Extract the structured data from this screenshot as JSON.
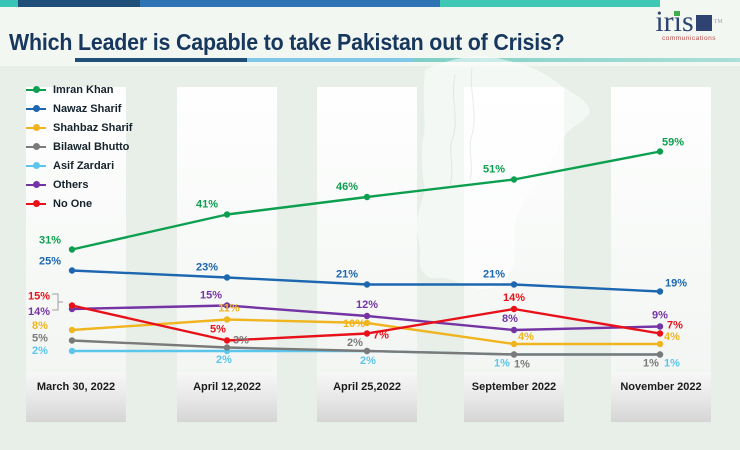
{
  "header": {
    "title": "Which Leader is Capable to take Pakistan out of Crisis?",
    "logo": {
      "text": "iris",
      "tm": "TM",
      "subtitle": "communications"
    }
  },
  "chart_data": {
    "type": "line",
    "categories": [
      "March 30, 2022",
      "April 12,2022",
      "April 25,2022",
      "September 2022",
      "November 2022"
    ],
    "series": [
      {
        "name": "Imran Khan",
        "color": "#0b9f4f",
        "values": [
          31,
          41,
          46,
          51,
          59
        ]
      },
      {
        "name": "Nawaz Sharif",
        "color": "#1c67b0",
        "values": [
          25,
          23,
          21,
          21,
          19
        ]
      },
      {
        "name": "Shahbaz Sharif",
        "color": "#f0b41f",
        "values": [
          8,
          11,
          10,
          4,
          4
        ]
      },
      {
        "name": "Bilawal Bhutto",
        "color": "#7a7a7a",
        "values": [
          5,
          3,
          2,
          1,
          1
        ]
      },
      {
        "name": "Asif Zardari",
        "color": "#5bc5ec",
        "values": [
          2,
          2,
          2,
          1,
          1
        ]
      },
      {
        "name": "Others",
        "color": "#7434a4",
        "values": [
          14,
          15,
          12,
          8,
          9
        ]
      },
      {
        "name": "No One",
        "color": "#e8111a",
        "values": [
          15,
          5,
          7,
          14,
          7
        ]
      }
    ],
    "value_suffix": "%",
    "ylim": [
      0,
      65
    ],
    "grid": false,
    "legend_position": "top-left",
    "marker": "dot"
  }
}
